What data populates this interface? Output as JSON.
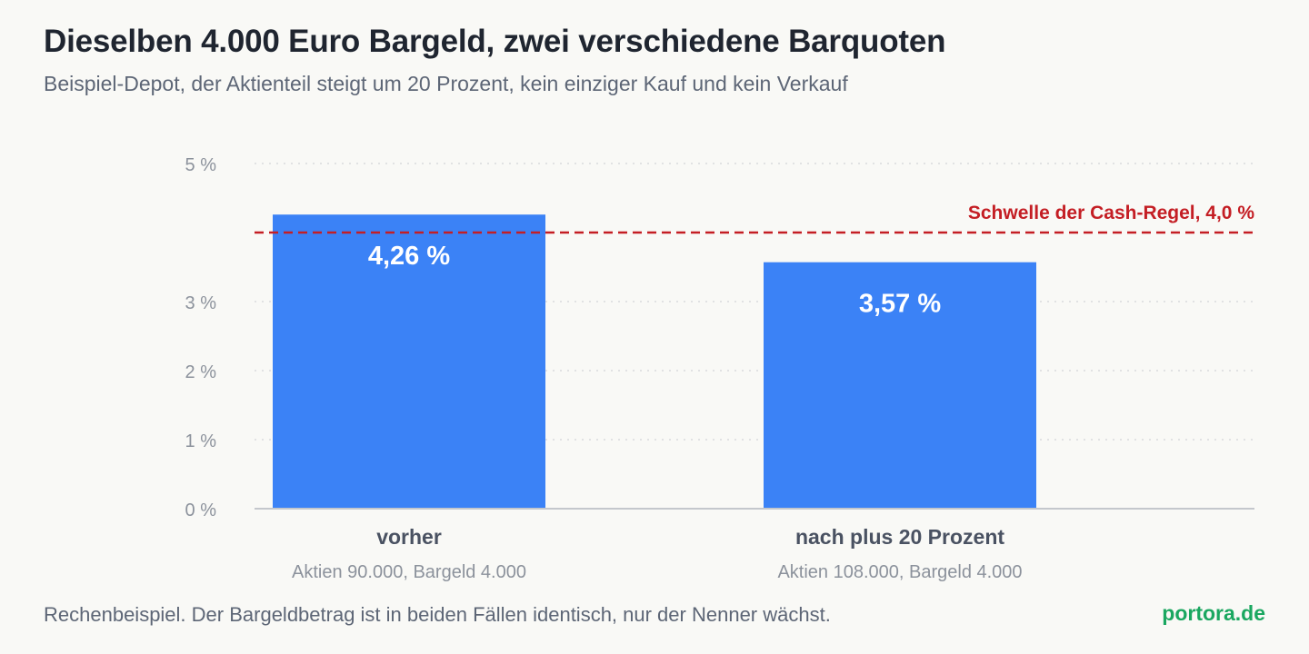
{
  "title": "Dieselben 4.000 Euro Bargeld, zwei verschiedene Barquoten",
  "subtitle": "Beispiel-Depot, der Aktienteil steigt um 20 Prozent, kein einziger Kauf und kein Verkauf",
  "footnote": "Rechenbeispiel. Der Bargeldbetrag ist in beiden Fällen identisch, nur der Nenner wächst.",
  "brand": "portora.de",
  "colors": {
    "bar": "#3b82f6",
    "threshold": "#c41e24",
    "brand": "#1aa760",
    "background": "#f9f9f6"
  },
  "chart_data": {
    "type": "bar",
    "categories": [
      "vorher",
      "nach plus 20 Prozent"
    ],
    "category_sublabels": [
      "Aktien 90.000, Bargeld 4.000",
      "Aktien 108.000, Bargeld 4.000"
    ],
    "values": [
      4.26,
      3.57
    ],
    "value_labels": [
      "4,26 %",
      "3,57 %"
    ],
    "ylim": [
      0,
      5
    ],
    "yticks": [
      0,
      1,
      2,
      3,
      5
    ],
    "ytick_labels": [
      "0 %",
      "1 %",
      "2 %",
      "3 %",
      "5 %"
    ],
    "grid": true,
    "reference_line": {
      "value": 4.0,
      "label": "Schwelle der Cash-Regel, 4,0 %"
    },
    "xlabel": "",
    "ylabel": ""
  }
}
